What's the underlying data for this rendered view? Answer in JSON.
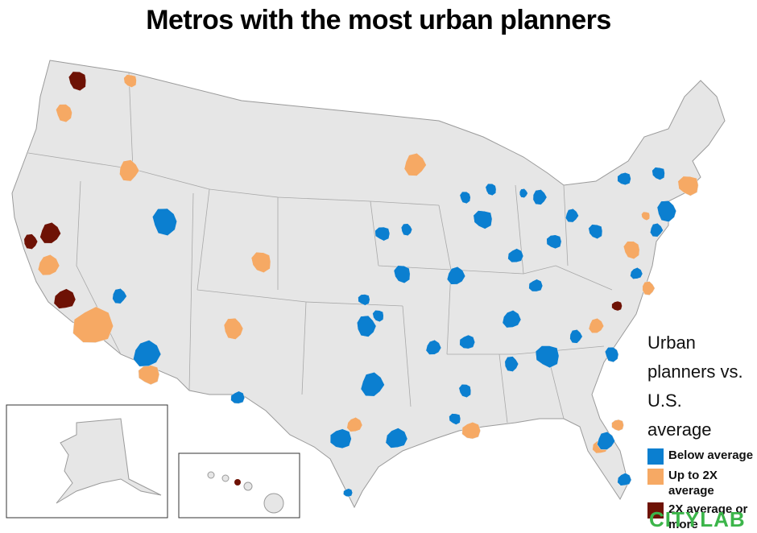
{
  "title": "Metros with the most urban planners",
  "legend": {
    "title": "Urban planners vs. U.S. average",
    "items": [
      {
        "label": "Below average",
        "color": "#0b7fd0"
      },
      {
        "label": "Up to 2X average",
        "color": "#f6a964"
      },
      {
        "label": "2X average or more",
        "color": "#6e1205"
      }
    ]
  },
  "logo": "CITYLAB"
}
